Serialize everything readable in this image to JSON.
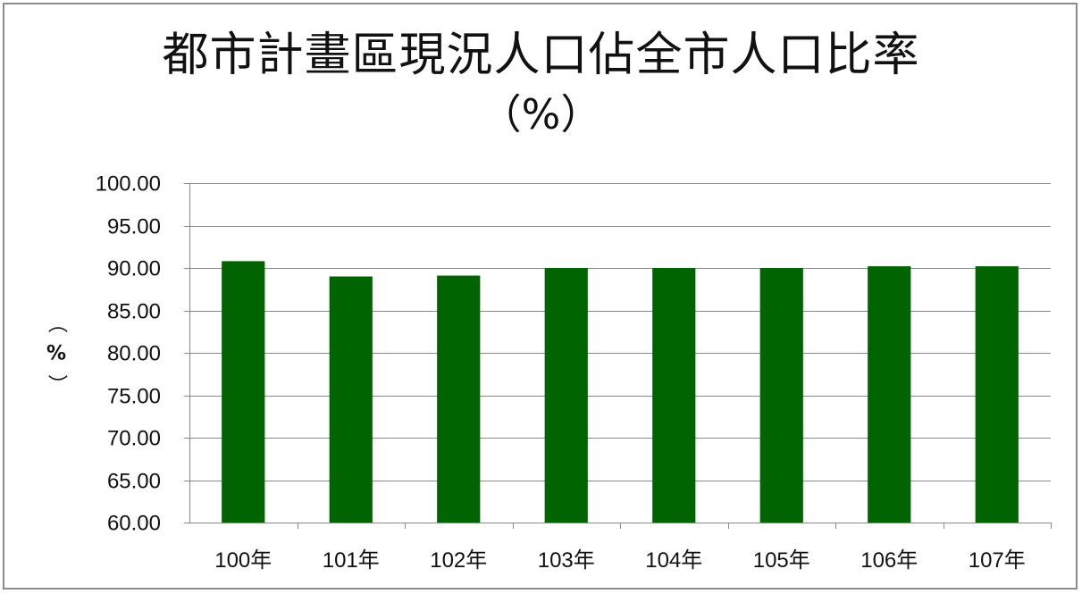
{
  "chart_data": {
    "type": "bar",
    "title": "都市計畫區現況人口佔全市人口比率",
    "subtitle": "（%）",
    "ylabel": "（%）",
    "xlabel": "",
    "categories": [
      "100年",
      "101年",
      "102年",
      "103年",
      "104年",
      "105年",
      "106年",
      "107年"
    ],
    "series": [
      {
        "values": [
          90.8,
          89.0,
          89.1,
          90.0,
          90.0,
          90.0,
          90.2,
          90.2
        ],
        "color": "#006400"
      }
    ],
    "ylim": [
      60,
      100
    ],
    "yticks": [
      60,
      65,
      70,
      75,
      80,
      85,
      90,
      95,
      100
    ],
    "ytick_labels": [
      "60.00",
      "65.00",
      "70.00",
      "75.00",
      "80.00",
      "85.00",
      "90.00",
      "95.00",
      "100.00"
    ],
    "grid": true,
    "legend": "none"
  }
}
